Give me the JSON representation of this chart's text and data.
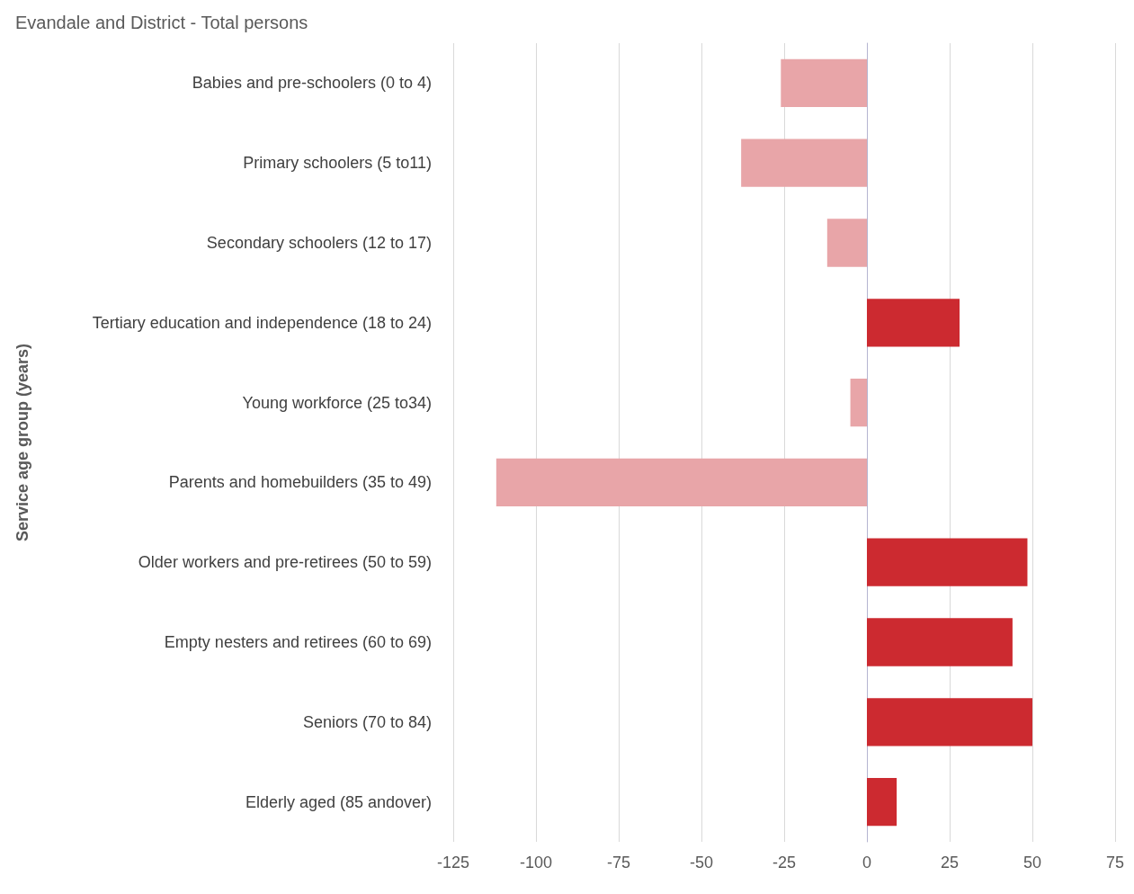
{
  "chart_data": {
    "type": "bar",
    "orientation": "horizontal",
    "title": "Evandale and District - Total persons",
    "ylabel": "Service age group (years)",
    "categories": [
      "Babies and pre-schoolers (0 to 4)",
      "Primary schoolers (5 to11)",
      "Secondary schoolers (12 to 17)",
      "Tertiary education and independence (18 to 24)",
      "Young workforce (25 to34)",
      "Parents and homebuilders (35 to 49)",
      "Older workers and pre-retirees (50 to 59)",
      "Empty nesters and retirees (60 to 69)",
      "Seniors (70 to 84)",
      "Elderly aged (85 andover)"
    ],
    "values": [
      -26,
      -38,
      -12,
      28,
      -5,
      -112,
      48.5,
      44,
      50,
      9
    ],
    "colors": [
      "#e8a5a8",
      "#e8a5a8",
      "#e8a5a8",
      "#cc2a30",
      "#e8a5a8",
      "#e8a5a8",
      "#cc2a30",
      "#cc2a30",
      "#cc2a30",
      "#cc2a30"
    ],
    "xlim": [
      -125,
      75
    ],
    "xticks": [
      -125,
      -100,
      -75,
      -50,
      -25,
      0,
      25,
      50,
      75
    ],
    "grid": "x"
  }
}
